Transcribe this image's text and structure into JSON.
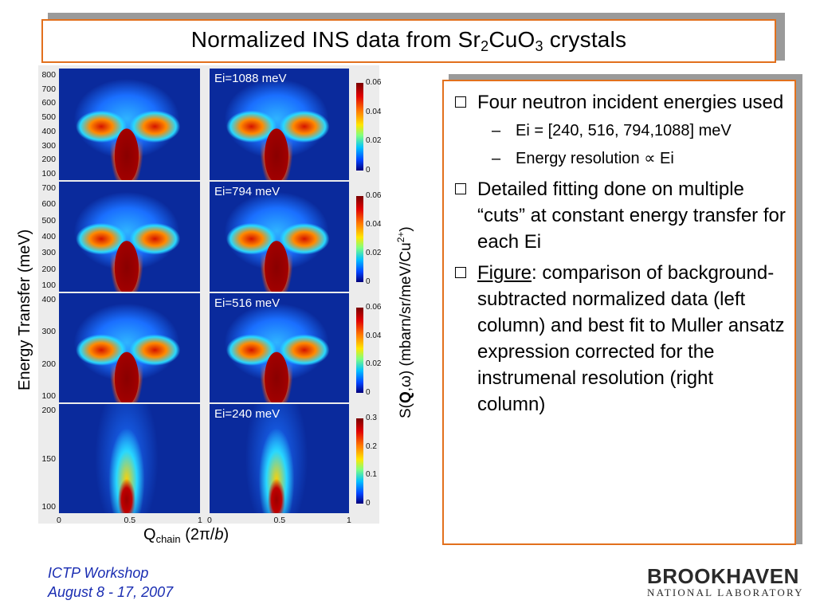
{
  "title": {
    "prefix": "Normalized INS data from Sr",
    "sub1": "2",
    "mid": "CuO",
    "sub2": "3",
    "suffix": " crystals"
  },
  "figure": {
    "y_axis_left": "Energy Transfer (meV)",
    "y_axis_right": {
      "prefix": "S(",
      "bold": "Q",
      "mid": ",ω) (mbarn/sr/meV/Cu",
      "sup": "2+",
      "suffix": ")"
    },
    "x_axis": {
      "q": "Q",
      "sub": "chain",
      "rest": " (2π/",
      "italic": "b",
      "close": ")"
    },
    "x_ticks": [
      "0",
      "0.5",
      "1"
    ],
    "rows": [
      {
        "label": "Ei=1088 meV",
        "y_ticks": [
          "800",
          "700",
          "600",
          "500",
          "400",
          "300",
          "200",
          "100"
        ],
        "cbar_ticks": [
          "0.06",
          "0.04",
          "0.02",
          "0"
        ]
      },
      {
        "label": "Ei=794 meV",
        "y_ticks": [
          "700",
          "600",
          "500",
          "400",
          "300",
          "200",
          "100"
        ],
        "cbar_ticks": [
          "0.06",
          "0.04",
          "0.02",
          "0"
        ]
      },
      {
        "label": "Ei=516 meV",
        "y_ticks": [
          "400",
          "300",
          "200",
          "100"
        ],
        "cbar_ticks": [
          "0.06",
          "0.04",
          "0.02",
          "0"
        ]
      },
      {
        "label": "Ei=240 meV",
        "y_ticks": [
          "200",
          "150",
          "100"
        ],
        "cbar_ticks": [
          "0.3",
          "0.2",
          "0.1",
          "0"
        ]
      }
    ]
  },
  "bullets": [
    {
      "text": "Four neutron incident energies used",
      "subs": [
        "Ei = [240, 516, 794,1088] meV",
        "Energy resolution ∝ Ei"
      ]
    },
    {
      "text": "Detailed fitting done on multiple “cuts” at constant energy transfer for each Ei",
      "subs": []
    },
    {
      "lead": "Figure",
      "text": ": comparison of background-subtracted normalized data (left column) and best fit to Muller ansatz expression corrected for the instrumenal resolution (right column)",
      "subs": []
    }
  ],
  "footer": {
    "line1": "ICTP Workshop",
    "line2": "August 8 - 17, 2007"
  },
  "logo": {
    "top": "BROOKHAVEN",
    "bottom": "NATIONAL LABORATORY"
  },
  "colors": {
    "accent": "#e2701d",
    "footer": "#1a2db2",
    "heat_bg": "#0a2a9c"
  }
}
